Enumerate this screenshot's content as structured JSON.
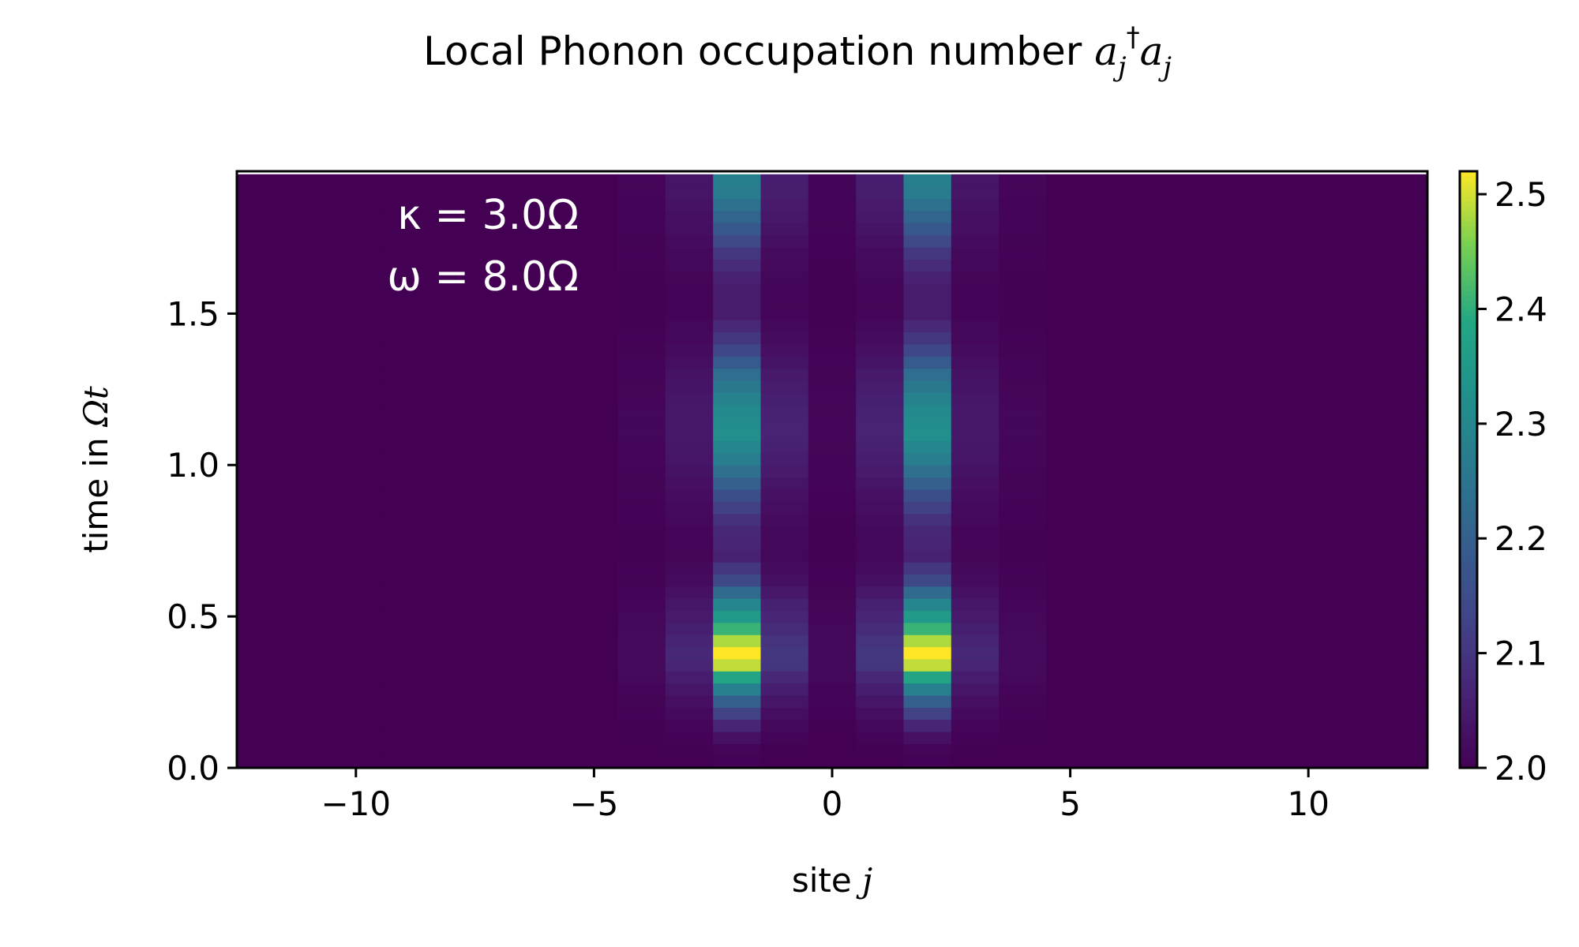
{
  "chart_data": {
    "type": "heatmap",
    "title": "Local Phonon occupation number ",
    "title_math_parts": [
      "a",
      "j",
      "†",
      "a",
      "j"
    ],
    "xlabel": "site ",
    "xlabel_var": "j",
    "ylabel": "time in ",
    "ylabel_var": "Ωt",
    "xlim": [
      -12.5,
      12.5
    ],
    "ylim": [
      0.0,
      1.97
    ],
    "x_ticks": [
      -10,
      -5,
      0,
      5,
      10
    ],
    "x_tick_labels": [
      "−10",
      "−5",
      "0",
      "5",
      "10"
    ],
    "y_ticks": [
      0.0,
      0.5,
      1.0,
      1.5
    ],
    "y_tick_labels": [
      "0.0",
      "0.5",
      "1.0",
      "1.5"
    ],
    "colorbar": {
      "colormap": "viridis",
      "range": [
        2.0,
        2.52
      ],
      "ticks": [
        2.0,
        2.1,
        2.2,
        2.3,
        2.4,
        2.5
      ],
      "tick_labels": [
        "2.0",
        "2.1",
        "2.2",
        "2.3",
        "2.4",
        "2.5"
      ]
    },
    "annotations": {
      "kappa": "κ = 3.0Ω",
      "omega": "ω = 8.0Ω"
    },
    "sites": [
      -12,
      -11,
      -10,
      -9,
      -8,
      -7,
      -6,
      -5,
      -4,
      -3,
      -2,
      -1,
      0,
      1,
      2,
      3,
      4,
      5,
      6,
      7,
      8,
      9,
      10,
      11,
      12
    ],
    "time_step": 0.04,
    "time_count": 49,
    "site_profiles": [
      {
        "site": -4,
        "weight": 0.035
      },
      {
        "site": -3,
        "weight": 0.14
      },
      {
        "site": -2,
        "weight": 1.0
      },
      {
        "site": -1,
        "weight": 0.2
      },
      {
        "site": 0,
        "weight": 0.03
      },
      {
        "site": 1,
        "weight": 0.2
      },
      {
        "site": 2,
        "weight": 1.0
      },
      {
        "site": 3,
        "weight": 0.14
      },
      {
        "site": 4,
        "weight": 0.035
      }
    ],
    "temporal_envelope": [
      {
        "t": 0.0,
        "v": 0.0
      },
      {
        "t": 0.06,
        "v": 0.02
      },
      {
        "t": 0.12,
        "v": 0.08
      },
      {
        "t": 0.2,
        "v": 0.3
      },
      {
        "t": 0.28,
        "v": 0.62
      },
      {
        "t": 0.35,
        "v": 1.0
      },
      {
        "t": 0.4,
        "v": 1.0
      },
      {
        "t": 0.47,
        "v": 0.75
      },
      {
        "t": 0.55,
        "v": 0.55
      },
      {
        "t": 0.62,
        "v": 0.28
      },
      {
        "t": 0.7,
        "v": 0.12
      },
      {
        "t": 0.8,
        "v": 0.15
      },
      {
        "t": 0.9,
        "v": 0.3
      },
      {
        "t": 1.0,
        "v": 0.5
      },
      {
        "t": 1.1,
        "v": 0.62
      },
      {
        "t": 1.2,
        "v": 0.58
      },
      {
        "t": 1.3,
        "v": 0.45
      },
      {
        "t": 1.4,
        "v": 0.22
      },
      {
        "t": 1.5,
        "v": 0.1
      },
      {
        "t": 1.6,
        "v": 0.1
      },
      {
        "t": 1.7,
        "v": 0.2
      },
      {
        "t": 1.8,
        "v": 0.38
      },
      {
        "t": 1.9,
        "v": 0.52
      },
      {
        "t": 1.97,
        "v": 0.55
      }
    ],
    "peak_value": 2.52,
    "base_value": 2.0
  }
}
